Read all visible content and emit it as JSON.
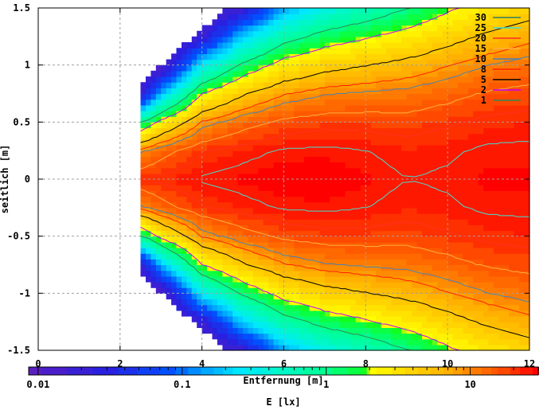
{
  "chart_data": {
    "type": "heatmap",
    "title": "",
    "xlabel": "Entfernung [m]",
    "ylabel": "seitlich [m]",
    "colorbar_label": "E [lx]",
    "xlim": [
      0,
      12
    ],
    "ylim": [
      -1.5,
      1.5
    ],
    "x_ticks": [
      "0",
      "2",
      "4",
      "6",
      "8",
      "10",
      "12"
    ],
    "y_ticks": [
      "1.5",
      "1",
      "0.5",
      "0",
      "-0.5",
      "-1",
      "-1.5"
    ],
    "colorbar_scale": "log",
    "colorbar_range": [
      0.0086,
      30
    ],
    "colorbar_ticks": [
      "0.01",
      "0.1",
      "1",
      "10"
    ],
    "grid": true,
    "legend_placement": "top-right",
    "contours": [
      {
        "level": "30",
        "color": "#2e7d5b"
      },
      {
        "level": "25",
        "color": "#40e0d0"
      },
      {
        "level": "20",
        "color": "#ff3020"
      },
      {
        "level": "15",
        "color": "#ffb040"
      },
      {
        "level": "10",
        "color": "#4682b4"
      },
      {
        "level": "8",
        "color": "#ff2000"
      },
      {
        "level": "5",
        "color": "#000000"
      },
      {
        "level": "2",
        "color": "#c000ff"
      },
      {
        "level": "1",
        "color": "#2e8b57"
      }
    ],
    "domain": {
      "x_min": 2.5,
      "edge_from": [
        2.5,
        0.85
      ],
      "edge_to": [
        4.6,
        1.5
      ]
    },
    "grid_x": [
      2.5,
      3,
      4,
      5,
      6,
      7,
      8,
      9,
      10,
      11,
      12
    ],
    "grid_abs_y": [
      0,
      0.25,
      0.5,
      0.75,
      1.0,
      1.25,
      1.5
    ],
    "values_lx": [
      [
        20,
        9.5,
        1.0,
        0.02,
        0.01,
        0.01,
        0.01
      ],
      [
        22,
        12.9,
        2.6,
        0.18,
        0.01,
        0.01,
        0.01
      ],
      [
        26,
        19.7,
        8.5,
        2.1,
        0.3,
        0.02,
        0.01
      ],
      [
        28,
        23,
        12.8,
        4.8,
        1.2,
        0.21,
        0.02
      ],
      [
        30,
        25.9,
        16.6,
        7.9,
        2.8,
        0.73,
        0.14
      ],
      [
        30,
        26.5,
        18.3,
        9.8,
        4.1,
        1.35,
        0.35
      ],
      [
        28,
        25.2,
        18.2,
        10.7,
        5.0,
        1.9,
        0.59
      ],
      [
        25,
        22.9,
        17.5,
        11.3,
        6.1,
        2.7,
        1.0
      ],
      [
        26,
        24.1,
        19.3,
        13.3,
        7.9,
        4.0,
        1.8
      ],
      [
        28,
        26.3,
        21.7,
        15.8,
        10.1,
        5.7,
        2.9
      ],
      [
        28,
        26.5,
        22.5,
        17.1,
        11.7,
        7.1,
        3.9
      ]
    ]
  }
}
